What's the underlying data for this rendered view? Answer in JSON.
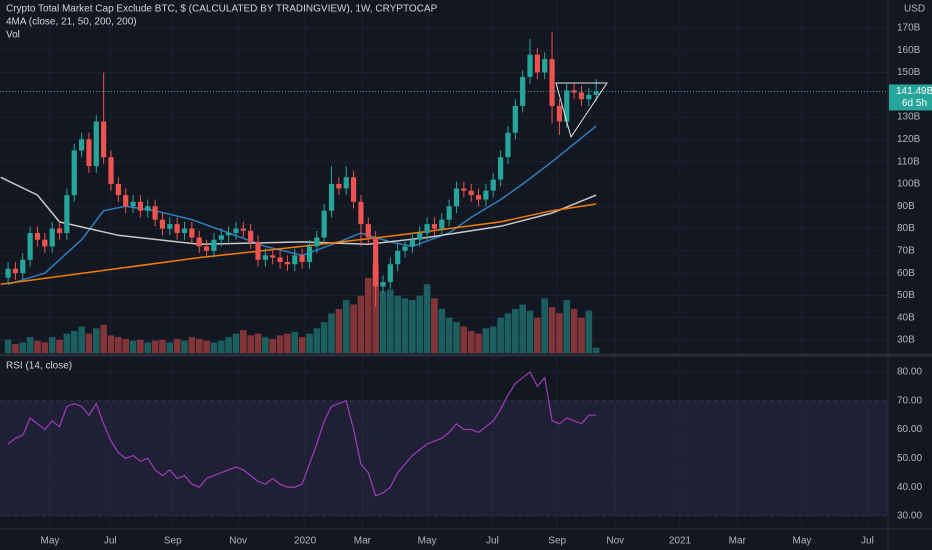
{
  "chart_data": [
    {
      "type": "candlestick",
      "title": "Crypto Total Market Cap Exclude BTC, $ (CALCULATED BY TRADINGVIEW), 1W, CRYPTOCAP",
      "indicator_label": "4MA (close, 21, 50, 200, 200)",
      "volume_label": "Vol",
      "currency": "USD",
      "up_color": "#26a69a",
      "down_color": "#ef5350",
      "ylim": [
        24.2,
        182.5
      ],
      "yticks": [
        {
          "value": 30,
          "label": "30B"
        },
        {
          "value": 40,
          "label": "40B"
        },
        {
          "value": 50,
          "label": "50B"
        },
        {
          "value": 60,
          "label": "60B"
        },
        {
          "value": 70,
          "label": "70B"
        },
        {
          "value": 80,
          "label": "80B"
        },
        {
          "value": 90,
          "label": "90B"
        },
        {
          "value": 100,
          "label": "100B"
        },
        {
          "value": 110,
          "label": "110B"
        },
        {
          "value": 120,
          "label": "120B"
        },
        {
          "value": 130,
          "label": "130B"
        },
        {
          "value": 150,
          "label": "150B"
        },
        {
          "value": 160,
          "label": "160B"
        },
        {
          "value": 170,
          "label": "170B"
        }
      ],
      "open": [
        58,
        62,
        60,
        66,
        78,
        75,
        72,
        80,
        78,
        95,
        115,
        120,
        108,
        128,
        112,
        100,
        95,
        90,
        92,
        88,
        90,
        84,
        80,
        82,
        78,
        80,
        76,
        72,
        70,
        75,
        77,
        78,
        80,
        79,
        74,
        66,
        68,
        67,
        65,
        64,
        68,
        65,
        72,
        76,
        88,
        100,
        98,
        103,
        92,
        82,
        76,
        54,
        56,
        64,
        70,
        72,
        75,
        78,
        82,
        80,
        84,
        90,
        98,
        97,
        95,
        93,
        97,
        102,
        112,
        123,
        135,
        148,
        158,
        150,
        156,
        135,
        128,
        142,
        141,
        138,
        140
      ],
      "high": [
        65,
        65,
        69,
        81,
        81,
        78,
        83,
        83,
        98,
        118,
        123,
        123,
        131,
        150,
        115,
        103,
        98,
        95,
        95,
        93,
        93,
        87,
        85,
        85,
        83,
        83,
        79,
        75,
        78,
        80,
        81,
        83,
        83,
        82,
        77,
        71,
        71,
        70,
        68,
        71,
        71,
        75,
        79,
        91,
        108,
        103,
        108,
        106,
        95,
        85,
        79,
        59,
        67,
        73,
        75,
        78,
        81,
        85,
        85,
        87,
        93,
        101,
        101,
        100,
        98,
        100,
        105,
        115,
        126,
        138,
        151,
        165,
        161,
        159,
        168,
        138,
        145,
        145,
        144,
        143,
        147
      ],
      "low": [
        55,
        57,
        57,
        63,
        72,
        69,
        69,
        75,
        75,
        92,
        112,
        105,
        105,
        109,
        97,
        92,
        87,
        87,
        85,
        85,
        81,
        77,
        77,
        75,
        75,
        73,
        69,
        67,
        67,
        72,
        74,
        75,
        76,
        71,
        63,
        63,
        64,
        62,
        61,
        61,
        62,
        62,
        69,
        73,
        85,
        95,
        95,
        89,
        72,
        73,
        45,
        51,
        53,
        61,
        67,
        69,
        72,
        75,
        77,
        77,
        81,
        87,
        94,
        92,
        90,
        90,
        94,
        99,
        109,
        120,
        132,
        145,
        147,
        147,
        127,
        122,
        125,
        138,
        135,
        135,
        137
      ],
      "close": [
        62,
        60,
        66,
        78,
        75,
        72,
        80,
        78,
        95,
        115,
        120,
        108,
        128,
        112,
        100,
        95,
        90,
        92,
        88,
        90,
        84,
        80,
        82,
        78,
        80,
        76,
        72,
        70,
        75,
        77,
        78,
        80,
        79,
        74,
        66,
        68,
        67,
        65,
        64,
        68,
        65,
        72,
        76,
        88,
        100,
        98,
        103,
        92,
        82,
        76,
        54,
        56,
        64,
        70,
        72,
        75,
        78,
        82,
        80,
        84,
        90,
        98,
        97,
        95,
        93,
        97,
        102,
        112,
        123,
        135,
        148,
        158,
        150,
        156,
        135,
        128,
        142,
        141,
        138,
        140,
        141.49
      ],
      "volume": [
        15,
        10,
        12,
        18,
        14,
        12,
        18,
        15,
        22,
        25,
        30,
        22,
        28,
        32,
        20,
        18,
        16,
        14,
        15,
        12,
        14,
        15,
        12,
        16,
        14,
        18,
        16,
        14,
        12,
        14,
        18,
        22,
        26,
        20,
        22,
        18,
        16,
        20,
        22,
        24,
        18,
        22,
        28,
        35,
        45,
        50,
        60,
        55,
        65,
        85,
        100,
        70,
        72,
        65,
        62,
        60,
        65,
        78,
        62,
        50,
        40,
        35,
        30,
        25,
        22,
        28,
        30,
        40,
        45,
        50,
        55,
        48,
        40,
        62,
        52,
        45,
        60,
        50,
        40,
        48,
        6
      ],
      "volume_lim": [
        0,
        110
      ],
      "overlays": [
        {
          "color": "#2e7fb8",
          "x": [
            0,
            5,
            10,
            13,
            16,
            20,
            25,
            30,
            35,
            40,
            45,
            48,
            52,
            55,
            60,
            63,
            67,
            70,
            74,
            80
          ],
          "values": [
            55,
            60,
            75,
            88,
            90,
            88,
            84,
            78,
            72,
            68,
            74,
            78,
            74,
            72,
            78,
            85,
            93,
            100,
            110,
            126
          ]
        },
        {
          "color": "#c8c8c8",
          "x": [
            -1,
            4,
            7,
            15,
            26,
            40,
            49,
            57,
            67,
            74,
            80
          ],
          "values": [
            103,
            95,
            83,
            77,
            73,
            74,
            73,
            76,
            81,
            87,
            95
          ]
        },
        {
          "color": "#f57c00",
          "x": [
            -1,
            26,
            40,
            53,
            67,
            74,
            80
          ],
          "values": [
            55,
            67,
            72,
            77,
            83,
            88,
            91
          ]
        }
      ],
      "last_value": 141.49,
      "last_value_label": "141.49B",
      "countdown": "6d 5h"
    },
    {
      "type": "line",
      "title": "RSI (14, close)",
      "color": "#9c3fb5",
      "band": [
        30,
        70
      ],
      "ylim": [
        25.8,
        85.2
      ],
      "yticks": [
        {
          "value": 30,
          "label": "30.00"
        },
        {
          "value": 40,
          "label": "40.00"
        },
        {
          "value": 50,
          "label": "50.00"
        },
        {
          "value": 60,
          "label": "60.00"
        },
        {
          "value": 70,
          "label": "70.00"
        },
        {
          "value": 80,
          "label": "80.00"
        }
      ],
      "values": [
        55,
        57,
        58,
        64,
        62,
        60,
        63,
        61,
        68,
        69,
        68,
        65,
        69,
        62,
        56,
        52,
        50,
        51,
        49,
        50,
        46,
        44,
        46,
        43,
        44,
        41,
        40,
        43,
        44,
        45,
        46,
        47,
        46,
        44,
        42,
        41,
        43,
        41,
        40,
        40,
        41,
        48,
        55,
        63,
        68,
        69,
        70,
        60,
        48,
        45,
        37,
        38,
        40,
        45,
        48,
        51,
        53,
        55,
        56,
        57,
        59,
        62,
        60,
        60,
        59,
        61,
        63,
        67,
        72,
        76,
        78,
        80,
        75,
        78,
        63,
        62,
        64,
        63,
        62,
        65,
        65
      ],
      "xlim": [
        -1.1,
        119.7
      ],
      "xticks": [
        {
          "value": 5.7,
          "label": "May"
        },
        {
          "value": 13.9,
          "label": "Jul"
        },
        {
          "value": 22.4,
          "label": "Sep"
        },
        {
          "value": 31.3,
          "label": "Nov"
        },
        {
          "value": 40.4,
          "label": "2020"
        },
        {
          "value": 48.2,
          "label": "Mar"
        },
        {
          "value": 57,
          "label": "May"
        },
        {
          "value": 65.9,
          "label": "Jul"
        },
        {
          "value": 74.7,
          "label": "Sep"
        },
        {
          "value": 82.6,
          "label": "Nov"
        },
        {
          "value": 91.4,
          "label": "2021"
        },
        {
          "value": 99.2,
          "label": "Mar"
        },
        {
          "value": 108,
          "label": "May"
        },
        {
          "value": 116.9,
          "label": "Jul"
        }
      ]
    }
  ]
}
